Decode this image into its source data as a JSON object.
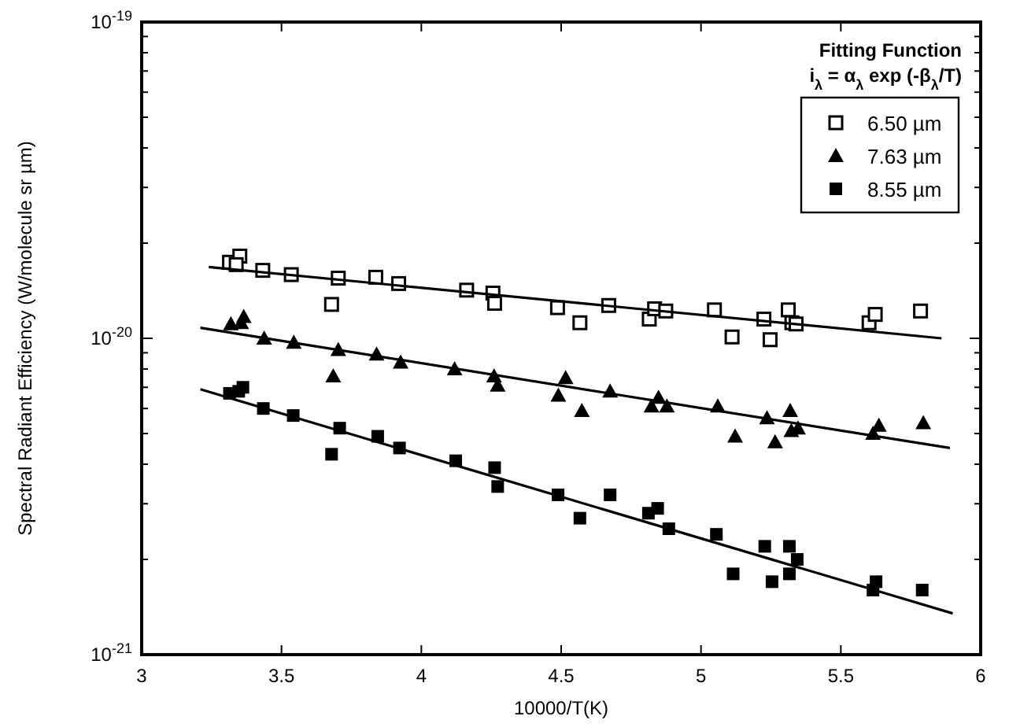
{
  "chart_data": {
    "type": "scatter",
    "xlabel": "10000/T(K)",
    "ylabel": "Spectral Radiant Efficiency (W/molecule sr µm)",
    "legend_title": "Fitting Function",
    "annotations": [
      "i$_{λ}$ = α$_{λ}$ exp (-β$_{λ}$/T)"
    ],
    "log": "y",
    "legend": "top right",
    "grid": false,
    "xlim": [
      3,
      6
    ],
    "xticks": [
      3,
      3.5,
      4,
      4.5,
      5,
      5.5,
      6
    ],
    "ylim": [
      1e-21,
      1e-19
    ],
    "yticks": [
      {
        "value": 1e-21,
        "label": "10$^{-21}$"
      },
      {
        "value": 2e-21,
        "label": null
      },
      {
        "value": 3e-21,
        "label": null
      },
      {
        "value": 4e-21,
        "label": null
      },
      {
        "value": 5e-21,
        "label": null
      },
      {
        "value": 6e-21,
        "label": null
      },
      {
        "value": 7e-21,
        "label": null
      },
      {
        "value": 8e-21,
        "label": null
      },
      {
        "value": 9e-21,
        "label": null
      },
      {
        "value": 1e-20,
        "label": "10$^{-20}$"
      },
      {
        "value": 2e-20,
        "label": null
      },
      {
        "value": 3e-20,
        "label": null
      },
      {
        "value": 4e-20,
        "label": null
      },
      {
        "value": 5e-20,
        "label": null
      },
      {
        "value": 6e-20,
        "label": null
      },
      {
        "value": 7e-20,
        "label": null
      },
      {
        "value": 8e-20,
        "label": null
      },
      {
        "value": 9e-20,
        "label": null
      },
      {
        "value": 1e-19,
        "label": "10$^{-19}$"
      }
    ],
    "series": [
      {
        "name": "6.50 µm",
        "marker": "square-open",
        "color": "#000000",
        "x": [
          3.314,
          3.351,
          3.338,
          3.433,
          3.535,
          3.679,
          3.703,
          3.837,
          3.919,
          4.162,
          4.256,
          4.262,
          4.487,
          4.567,
          4.67,
          4.815,
          4.834,
          4.874,
          5.048,
          5.111,
          5.225,
          5.247,
          5.312,
          5.325,
          5.34,
          5.601,
          5.623,
          5.785
        ],
        "values": [
          1.74e-20,
          1.82e-20,
          1.71e-20,
          1.64e-20,
          1.59e-20,
          1.28e-20,
          1.55e-20,
          1.56e-20,
          1.49e-20,
          1.42e-20,
          1.39e-20,
          1.29e-20,
          1.25e-20,
          1.12e-20,
          1.27e-20,
          1.15e-20,
          1.24e-20,
          1.22e-20,
          1.23e-20,
          1.01e-20,
          1.15e-20,
          9.9e-21,
          1.23e-20,
          1.12e-20,
          1.11e-20,
          1.12e-20,
          1.19e-20,
          1.22e-20
        ]
      },
      {
        "name": "7.63 µm",
        "marker": "triangle",
        "color": "#000000",
        "x": [
          3.319,
          3.365,
          3.356,
          3.438,
          3.544,
          3.685,
          3.703,
          3.84,
          3.926,
          4.119,
          4.26,
          4.273,
          4.49,
          4.516,
          4.574,
          4.675,
          4.823,
          4.848,
          4.878,
          5.06,
          5.122,
          5.236,
          5.265,
          5.319,
          5.323,
          5.347,
          5.615,
          5.636,
          5.795
        ],
        "values": [
          1.11e-20,
          1.17e-20,
          1.12e-20,
          1e-20,
          9.7e-21,
          7.6e-21,
          9.2e-21,
          8.9e-21,
          8.4e-21,
          8e-21,
          7.6e-21,
          7.1e-21,
          6.6e-21,
          7.5e-21,
          5.9e-21,
          6.8e-21,
          6.1e-21,
          6.5e-21,
          6.1e-21,
          6.1e-21,
          4.9e-21,
          5.6e-21,
          4.7e-21,
          5.9e-21,
          5.1e-21,
          5.2e-21,
          5e-21,
          5.3e-21,
          5.4e-21
        ]
      },
      {
        "name": "8.55 µm",
        "marker": "square",
        "color": "#000000",
        "x": [
          3.314,
          3.347,
          3.362,
          3.435,
          3.542,
          3.679,
          3.708,
          3.844,
          3.922,
          4.123,
          4.262,
          4.273,
          4.489,
          4.567,
          4.675,
          4.812,
          4.845,
          4.885,
          5.055,
          5.115,
          5.228,
          5.254,
          5.316,
          5.316,
          5.344,
          5.615,
          5.626,
          5.791
        ],
        "values": [
          6.7e-21,
          6.8e-21,
          7e-21,
          6e-21,
          5.7e-21,
          4.3e-21,
          5.2e-21,
          4.9e-21,
          4.5e-21,
          4.1e-21,
          3.9e-21,
          3.4e-21,
          3.2e-21,
          2.7e-21,
          3.2e-21,
          2.8e-21,
          2.9e-21,
          2.5e-21,
          2.4e-21,
          1.8e-21,
          2.2e-21,
          1.7e-21,
          2.2e-21,
          1.8e-21,
          2e-21,
          1.6e-21,
          1.7e-21,
          1.6e-21
        ]
      },
      {
        "type": "line",
        "marker": "none",
        "color": "#000000",
        "x": [
          3.24,
          5.86
        ],
        "values": [
          1.68e-20,
          1e-20
        ]
      },
      {
        "type": "line",
        "marker": "none",
        "color": "#000000",
        "x": [
          3.21,
          5.89
        ],
        "values": [
          1.08e-20,
          4.5e-21
        ]
      },
      {
        "type": "line",
        "marker": "none",
        "color": "#000000",
        "x": [
          3.21,
          5.9
        ],
        "values": [
          6.9e-21,
          1.35e-21
        ]
      }
    ]
  }
}
